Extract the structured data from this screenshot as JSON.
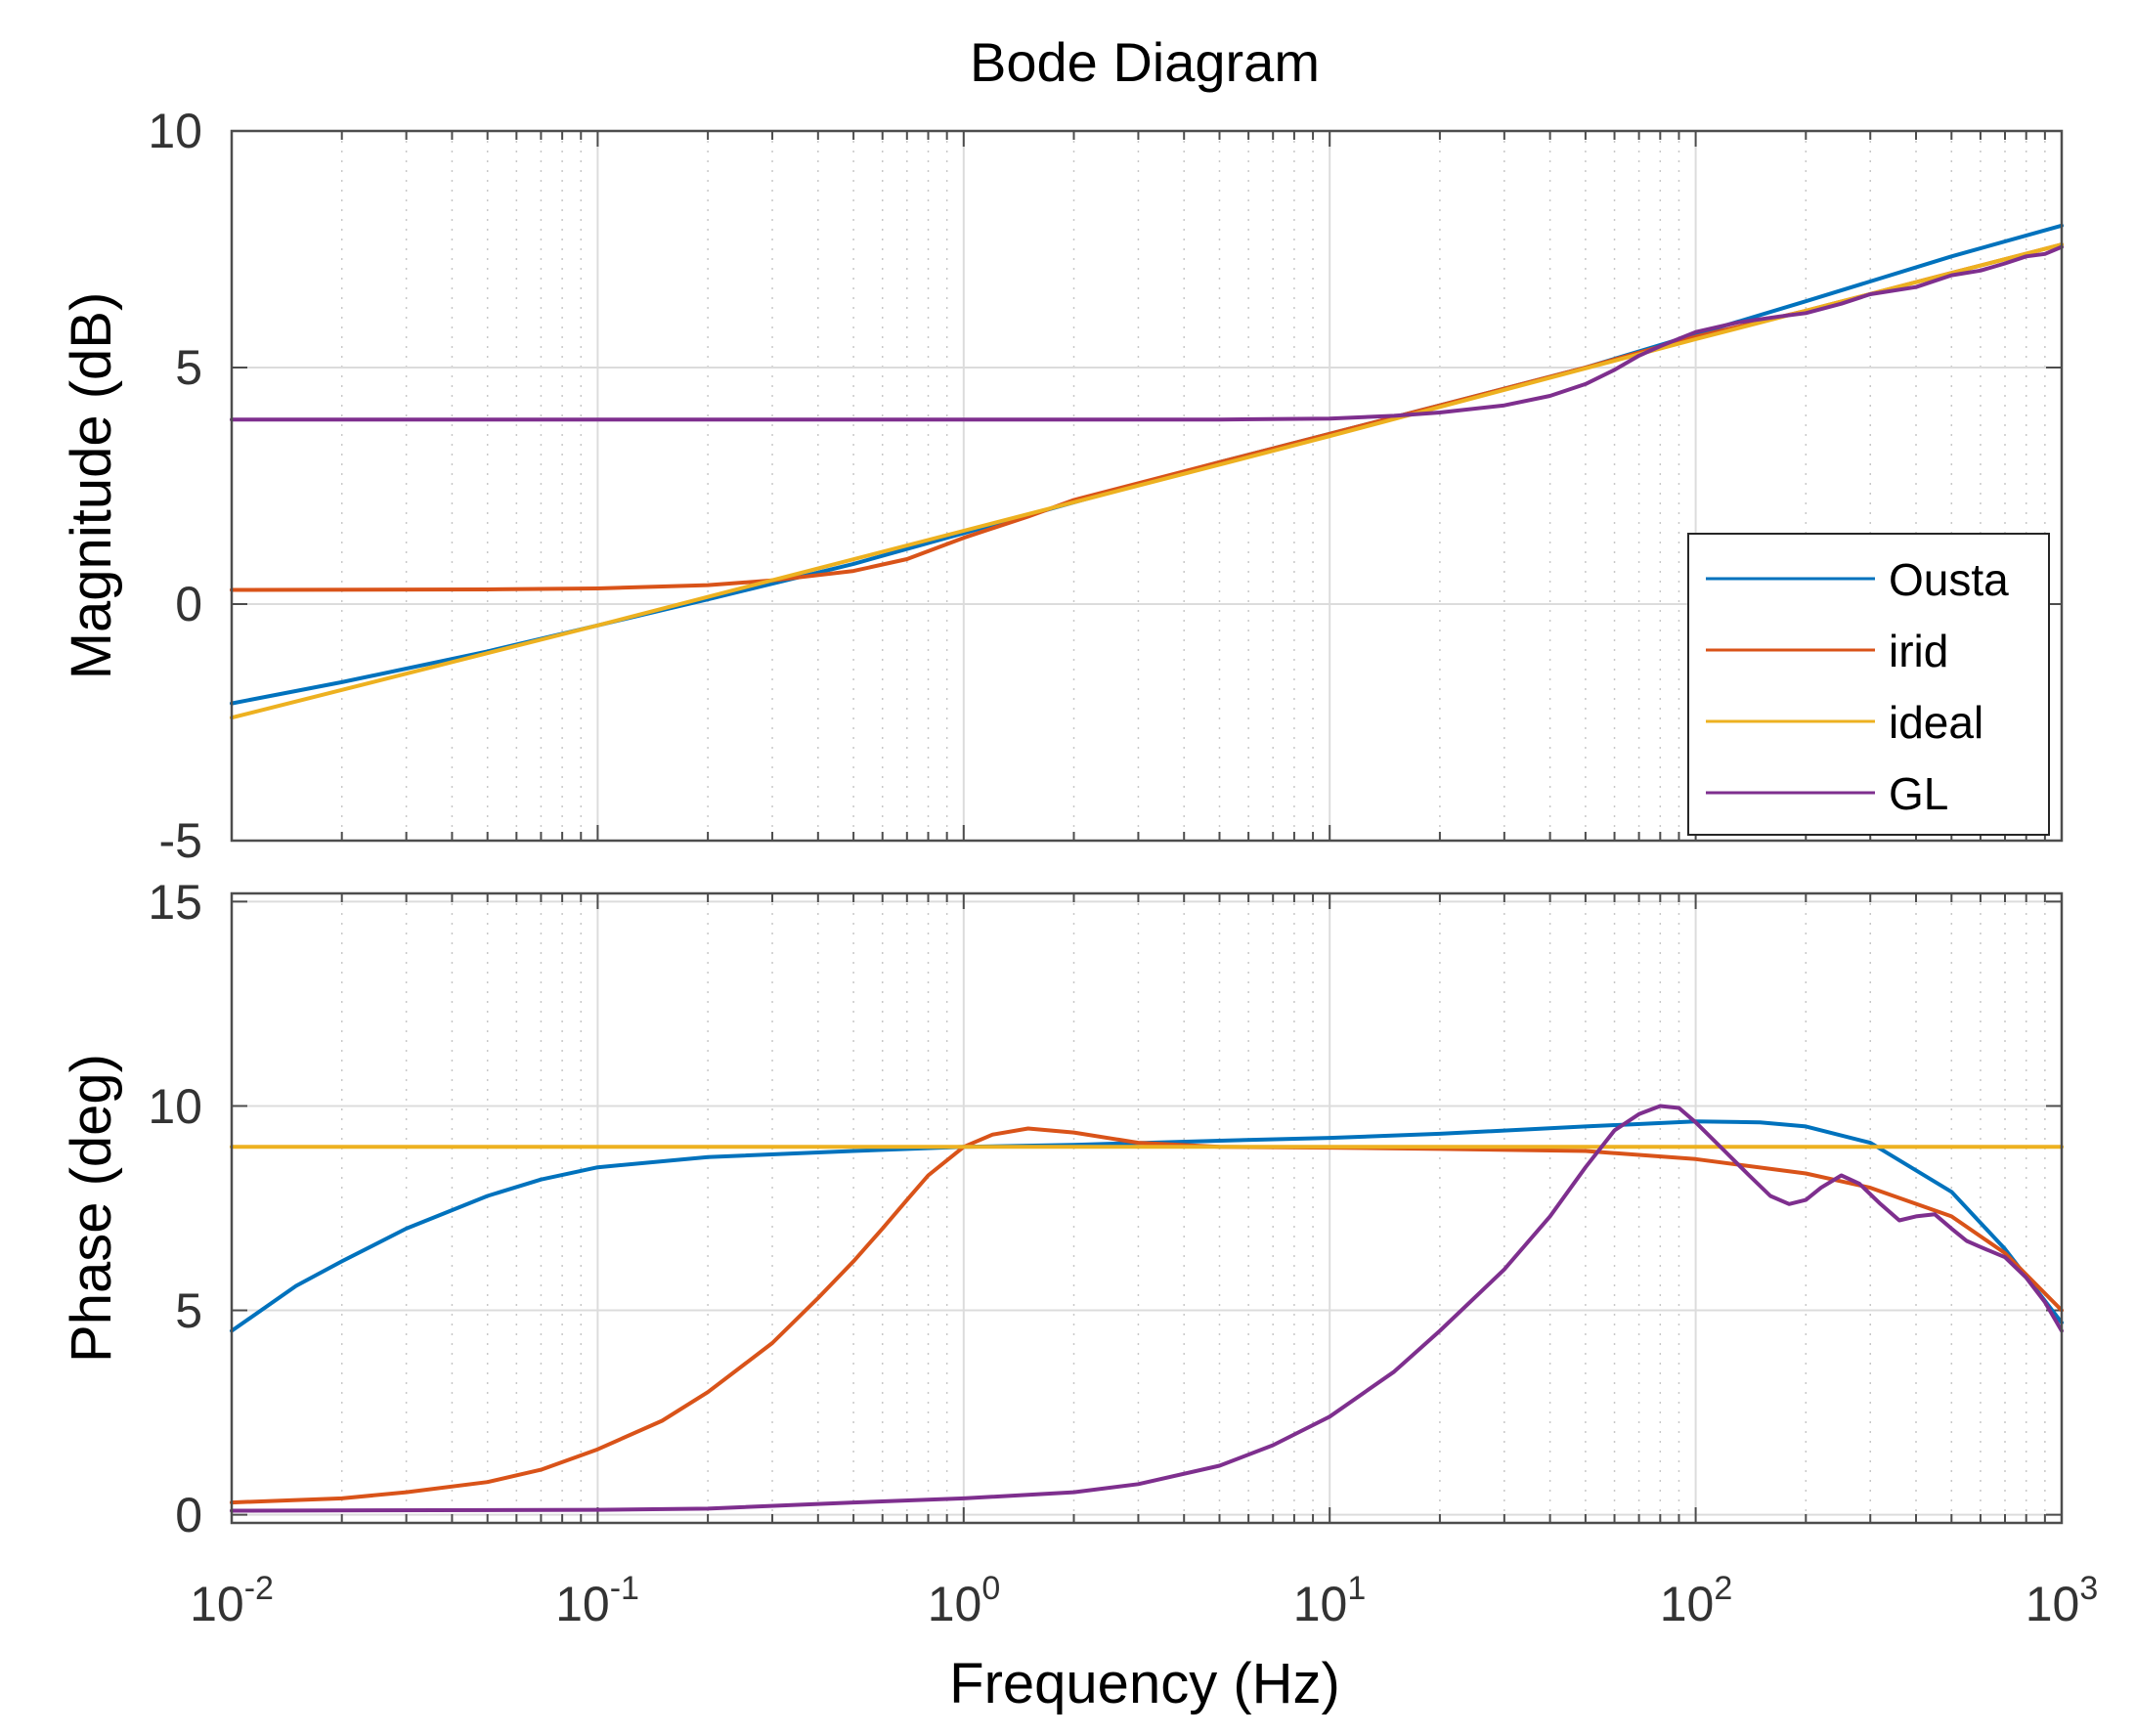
{
  "chart_data": {
    "type": "line",
    "title": "Bode Diagram",
    "xlabel": "Frequency  (Hz)",
    "xscale": "log",
    "xlim": [
      0.01,
      1000
    ],
    "x_ticks": [
      {
        "base": "10",
        "exp": "-2"
      },
      {
        "base": "10",
        "exp": "-1"
      },
      {
        "base": "10",
        "exp": "0"
      },
      {
        "base": "10",
        "exp": "1"
      },
      {
        "base": "10",
        "exp": "2"
      },
      {
        "base": "10",
        "exp": "3"
      }
    ],
    "grid": true,
    "legend": {
      "placement": "right",
      "entries": [
        "Ousta",
        "irid",
        "ideal",
        "GL"
      ]
    },
    "colors": {
      "Ousta": "#0072BD",
      "irid": "#D95319",
      "ideal": "#EDB120",
      "GL": "#7E2F8E"
    },
    "magnitude": {
      "ylabel": "Magnitude (dB)",
      "ylim": [
        -5,
        10
      ],
      "y_ticks": [
        "10",
        "5",
        "0",
        "-5"
      ],
      "series": [
        {
          "name": "Ousta",
          "points": [
            [
              0.01,
              -2.1
            ],
            [
              0.02,
              -1.65
            ],
            [
              0.05,
              -1.0
            ],
            [
              0.1,
              -0.45
            ],
            [
              0.2,
              0.1
            ],
            [
              0.5,
              0.85
            ],
            [
              1,
              1.5
            ],
            [
              2,
              2.15
            ],
            [
              5,
              3.0
            ],
            [
              10,
              3.6
            ],
            [
              20,
              4.2
            ],
            [
              50,
              5.0
            ],
            [
              100,
              5.7
            ],
            [
              200,
              6.4
            ],
            [
              500,
              7.35
            ],
            [
              1000,
              8.0
            ]
          ]
        },
        {
          "name": "irid",
          "points": [
            [
              0.01,
              0.3
            ],
            [
              0.05,
              0.31
            ],
            [
              0.1,
              0.33
            ],
            [
              0.2,
              0.4
            ],
            [
              0.3,
              0.5
            ],
            [
              0.5,
              0.7
            ],
            [
              0.7,
              0.95
            ],
            [
              1,
              1.4
            ],
            [
              1.5,
              1.85
            ],
            [
              2,
              2.2
            ],
            [
              5,
              3.0
            ],
            [
              10,
              3.6
            ],
            [
              20,
              4.2
            ],
            [
              50,
              5.0
            ],
            [
              100,
              5.65
            ],
            [
              200,
              6.2
            ],
            [
              500,
              7.0
            ],
            [
              1000,
              7.6
            ]
          ]
        },
        {
          "name": "ideal",
          "points": [
            [
              0.01,
              -2.4
            ],
            [
              0.1,
              -0.45
            ],
            [
              1,
              1.55
            ],
            [
              10,
              3.55
            ],
            [
              100,
              5.6
            ],
            [
              1000,
              7.6
            ]
          ]
        },
        {
          "name": "GL",
          "points": [
            [
              0.01,
              3.9
            ],
            [
              0.1,
              3.9
            ],
            [
              1,
              3.9
            ],
            [
              5,
              3.9
            ],
            [
              10,
              3.92
            ],
            [
              15,
              3.98
            ],
            [
              20,
              4.05
            ],
            [
              30,
              4.2
            ],
            [
              40,
              4.4
            ],
            [
              50,
              4.65
            ],
            [
              60,
              4.95
            ],
            [
              70,
              5.25
            ],
            [
              80,
              5.45
            ],
            [
              100,
              5.75
            ],
            [
              130,
              5.95
            ],
            [
              170,
              6.08
            ],
            [
              200,
              6.15
            ],
            [
              250,
              6.35
            ],
            [
              300,
              6.55
            ],
            [
              400,
              6.7
            ],
            [
              500,
              6.95
            ],
            [
              600,
              7.05
            ],
            [
              700,
              7.2
            ],
            [
              800,
              7.35
            ],
            [
              900,
              7.4
            ],
            [
              1000,
              7.55
            ]
          ]
        }
      ]
    },
    "phase": {
      "ylabel": "Phase (deg)",
      "ylim": [
        -0.2,
        15.2
      ],
      "y_ticks": [
        "15",
        "10",
        "5",
        "0"
      ],
      "series": [
        {
          "name": "Ousta",
          "points": [
            [
              0.01,
              4.5
            ],
            [
              0.015,
              5.6
            ],
            [
              0.02,
              6.2
            ],
            [
              0.03,
              7.0
            ],
            [
              0.05,
              7.8
            ],
            [
              0.07,
              8.2
            ],
            [
              0.1,
              8.5
            ],
            [
              0.2,
              8.75
            ],
            [
              0.5,
              8.9
            ],
            [
              1,
              9.0
            ],
            [
              2,
              9.05
            ],
            [
              5,
              9.15
            ],
            [
              10,
              9.22
            ],
            [
              20,
              9.32
            ],
            [
              50,
              9.5
            ],
            [
              100,
              9.62
            ],
            [
              150,
              9.6
            ],
            [
              200,
              9.5
            ],
            [
              300,
              9.1
            ],
            [
              500,
              7.9
            ],
            [
              700,
              6.5
            ],
            [
              1000,
              4.7
            ]
          ]
        },
        {
          "name": "irid",
          "points": [
            [
              0.01,
              0.3
            ],
            [
              0.02,
              0.4
            ],
            [
              0.03,
              0.55
            ],
            [
              0.05,
              0.8
            ],
            [
              0.07,
              1.1
            ],
            [
              0.1,
              1.6
            ],
            [
              0.15,
              2.3
            ],
            [
              0.2,
              3.0
            ],
            [
              0.3,
              4.2
            ],
            [
              0.4,
              5.3
            ],
            [
              0.5,
              6.2
            ],
            [
              0.6,
              7.0
            ],
            [
              0.7,
              7.7
            ],
            [
              0.8,
              8.3
            ],
            [
              1,
              9.0
            ],
            [
              1.2,
              9.3
            ],
            [
              1.5,
              9.45
            ],
            [
              2,
              9.35
            ],
            [
              3,
              9.1
            ],
            [
              5,
              9.0
            ],
            [
              10,
              8.98
            ],
            [
              20,
              8.95
            ],
            [
              50,
              8.9
            ],
            [
              100,
              8.7
            ],
            [
              200,
              8.35
            ],
            [
              300,
              8.0
            ],
            [
              500,
              7.3
            ],
            [
              700,
              6.4
            ],
            [
              1000,
              5.0
            ]
          ]
        },
        {
          "name": "ideal",
          "points": [
            [
              0.01,
              9.0
            ],
            [
              1000,
              9.0
            ]
          ]
        },
        {
          "name": "GL",
          "points": [
            [
              0.01,
              0.1
            ],
            [
              0.1,
              0.12
            ],
            [
              0.2,
              0.15
            ],
            [
              0.5,
              0.3
            ],
            [
              1,
              0.4
            ],
            [
              2,
              0.55
            ],
            [
              3,
              0.75
            ],
            [
              5,
              1.2
            ],
            [
              7,
              1.7
            ],
            [
              10,
              2.4
            ],
            [
              15,
              3.5
            ],
            [
              20,
              4.5
            ],
            [
              30,
              6.0
            ],
            [
              40,
              7.3
            ],
            [
              50,
              8.5
            ],
            [
              60,
              9.4
            ],
            [
              70,
              9.8
            ],
            [
              80,
              10.0
            ],
            [
              90,
              9.95
            ],
            [
              100,
              9.6
            ],
            [
              120,
              8.9
            ],
            [
              140,
              8.3
            ],
            [
              160,
              7.8
            ],
            [
              180,
              7.6
            ],
            [
              200,
              7.7
            ],
            [
              220,
              8.0
            ],
            [
              250,
              8.3
            ],
            [
              280,
              8.1
            ],
            [
              320,
              7.6
            ],
            [
              360,
              7.2
            ],
            [
              400,
              7.3
            ],
            [
              450,
              7.35
            ],
            [
              500,
              7.0
            ],
            [
              550,
              6.7
            ],
            [
              600,
              6.55
            ],
            [
              700,
              6.3
            ],
            [
              800,
              5.8
            ],
            [
              900,
              5.2
            ],
            [
              1000,
              4.5
            ]
          ]
        }
      ]
    }
  }
}
